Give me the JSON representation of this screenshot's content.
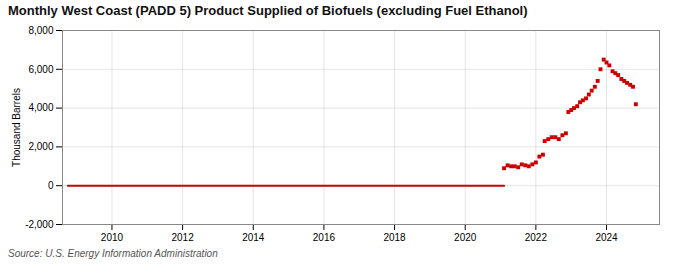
{
  "chart_data": {
    "type": "line",
    "title": "Monthly West Coast (PADD 5) Product Supplied of Biofuels (excluding Fuel Ethanol)",
    "ylabel": "Thousand Barrels",
    "source": "Source: U.S. Energy Information Administration",
    "xlim": [
      2008.6,
      2025.5
    ],
    "ylim": [
      -2000,
      8000
    ],
    "xticks": [
      2010,
      2012,
      2014,
      2016,
      2018,
      2020,
      2022,
      2024
    ],
    "yticks": [
      {
        "value": -2000,
        "label": "-2,000"
      },
      0,
      {
        "value": 2000,
        "label": "2,000"
      },
      {
        "value": 4000,
        "label": "4,000"
      },
      {
        "value": 6000,
        "label": "6,000"
      },
      {
        "value": 8000,
        "label": "8,000"
      }
    ],
    "grid": true,
    "series": [
      {
        "type": "line",
        "color": "#cc0000",
        "x": [
          2008.75,
          2021.1
        ],
        "values": [
          0,
          0
        ]
      },
      {
        "type": "scatter",
        "color": "#cc0000",
        "marker": "square",
        "x": [
          2021.1,
          2021.2,
          2021.3,
          2021.4,
          2021.5,
          2021.6,
          2021.7,
          2021.8,
          2021.9,
          2022.0,
          2022.1,
          2022.2,
          2022.25,
          2022.35,
          2022.45,
          2022.55,
          2022.65,
          2022.75,
          2022.85,
          2022.92,
          2023.0,
          2023.08,
          2023.17,
          2023.25,
          2023.33,
          2023.42,
          2023.5,
          2023.58,
          2023.67,
          2023.75,
          2023.83,
          2023.92,
          2024.0,
          2024.08,
          2024.17,
          2024.25,
          2024.33,
          2024.42,
          2024.5,
          2024.58,
          2024.67,
          2024.75,
          2024.83
        ],
        "values": [
          900,
          1050,
          1000,
          1000,
          950,
          1100,
          1050,
          1000,
          1100,
          1200,
          1500,
          1600,
          2300,
          2400,
          2500,
          2500,
          2400,
          2600,
          2700,
          3800,
          3900,
          4000,
          4100,
          4300,
          4400,
          4500,
          4700,
          4900,
          5100,
          5400,
          6000,
          6500,
          6350,
          6200,
          5900,
          5800,
          5700,
          5500,
          5400,
          5300,
          5200,
          5100,
          4200
        ]
      }
    ]
  }
}
